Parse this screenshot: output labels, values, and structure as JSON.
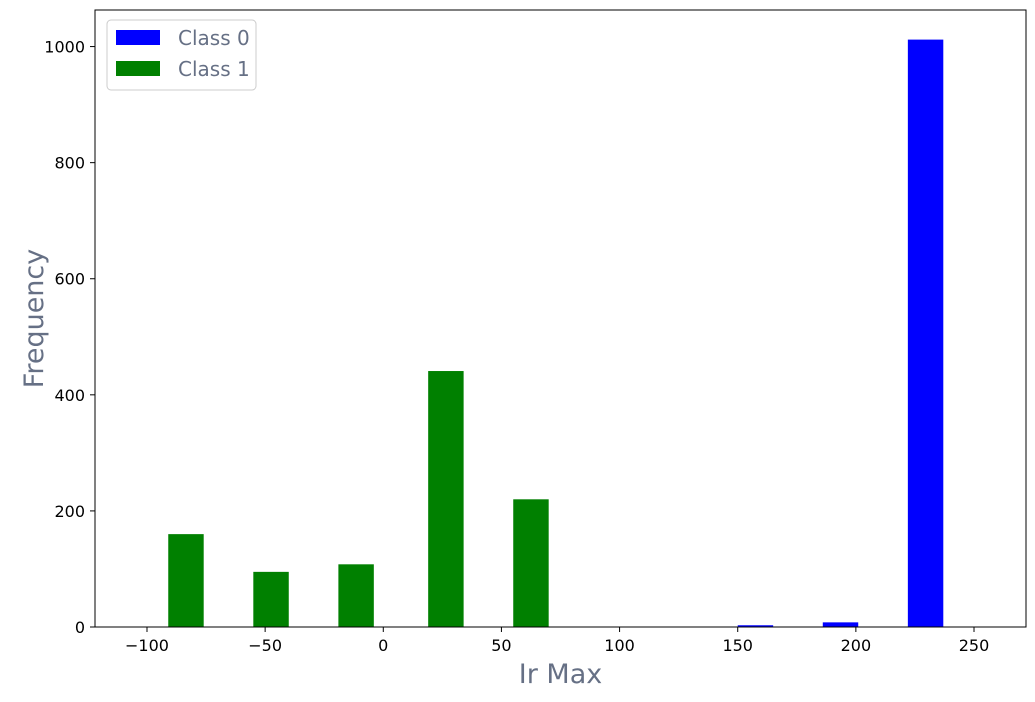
{
  "chart_data": {
    "type": "bar",
    "title": "",
    "xlabel": "Ir Max",
    "ylabel": "Frequency",
    "xlim": [
      -122,
      272
    ],
    "ylim": [
      0,
      1063
    ],
    "grid": false,
    "legend_placement": "top-left",
    "x_ticks": [
      -100,
      -50,
      0,
      50,
      100,
      150,
      200,
      250
    ],
    "x_tick_labels": [
      "−100",
      "−50",
      "0",
      "50",
      "100",
      "150",
      "200",
      "250"
    ],
    "y_ticks": [
      0,
      200,
      400,
      600,
      800,
      1000
    ],
    "y_tick_labels": [
      "0",
      "200",
      "400",
      "600",
      "800",
      "1000"
    ],
    "series": [
      {
        "name": "Class 0",
        "color": "#0000ff",
        "bins": [
          {
            "x_start": 150,
            "x_end": 165,
            "value": 3
          },
          {
            "x_start": 186,
            "x_end": 201,
            "value": 8
          },
          {
            "x_start": 222,
            "x_end": 237,
            "value": 1012
          }
        ]
      },
      {
        "name": "Class 1",
        "color": "#008000",
        "bins": [
          {
            "x_start": -91,
            "x_end": -76,
            "value": 160
          },
          {
            "x_start": -55,
            "x_end": -40,
            "value": 95
          },
          {
            "x_start": -19,
            "x_end": -4,
            "value": 108
          },
          {
            "x_start": 19,
            "x_end": 34,
            "value": 441
          },
          {
            "x_start": 55,
            "x_end": 70,
            "value": 220
          }
        ]
      }
    ]
  }
}
